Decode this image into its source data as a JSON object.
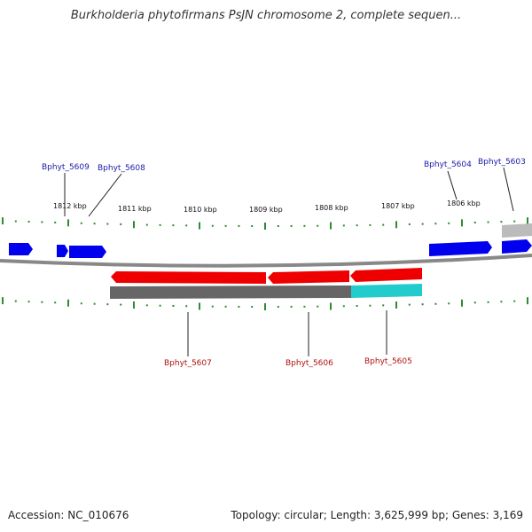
{
  "title": "Burkholderia phytofirmans PsJN chromosome 2, complete sequen...",
  "footer": {
    "accession": "Accession: NC_010676",
    "summary": "Topology: circular; Length: 3,625,999 bp; Genes: 3,169"
  },
  "colors": {
    "forward_gene": "#0000ee",
    "reverse_gene": "#ee0000",
    "tick": "#2e8b2e",
    "cds_band": "#666666",
    "rna_band": "#22cccc",
    "backbone": "#888888"
  },
  "ruler_labels": [
    "1812 kbp",
    "1811 kbp",
    "1810 kbp",
    "1809 kbp",
    "1808 kbp",
    "1807 kbp",
    "1806 kbp"
  ],
  "genes": [
    {
      "label": "Bphyt_5609",
      "strand": "+"
    },
    {
      "label": "Bphyt_5608",
      "strand": "+"
    },
    {
      "label": "Bphyt_5604",
      "strand": "+"
    },
    {
      "label": "Bphyt_5603",
      "strand": "+"
    },
    {
      "label": "Bphyt_5607",
      "strand": "-"
    },
    {
      "label": "Bphyt_5606",
      "strand": "-"
    },
    {
      "label": "Bphyt_5605",
      "strand": "-"
    }
  ]
}
